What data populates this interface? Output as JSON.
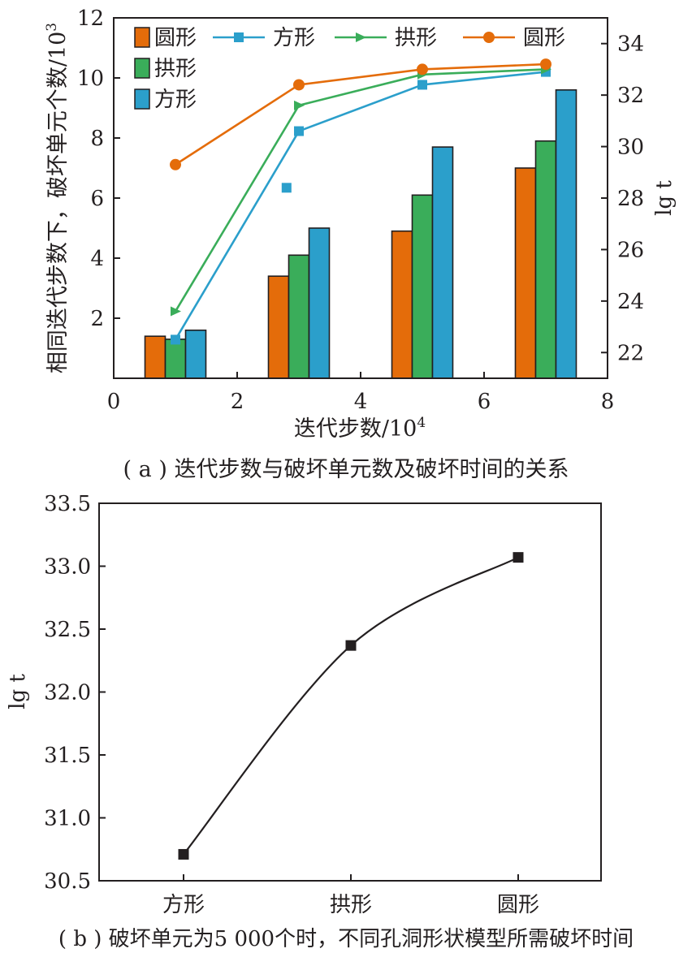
{
  "chart_data": [
    {
      "type": "bar+line",
      "panel_caption": "( a ) 迭代步数与破坏单元数及破坏时间的关系",
      "xlabel": "迭代步数/10",
      "xlabel_sup": "4",
      "ylabel_left": "相同迭代步数下，破坏单元个数/10",
      "ylabel_left_sup": "3",
      "ylabel_right": "lg t",
      "xlim": [
        0,
        8
      ],
      "ylim_left": [
        0,
        12
      ],
      "ylim_right": [
        21,
        35
      ],
      "x_ticks": [
        "0",
        "2",
        "4",
        "6",
        "8"
      ],
      "y_left_ticks": [
        "2",
        "4",
        "6",
        "8",
        "10",
        "12"
      ],
      "y_right_ticks": [
        "22",
        "24",
        "26",
        "28",
        "30",
        "32",
        "34"
      ],
      "bar_categories": [
        1,
        3,
        5,
        7
      ],
      "bar_series": [
        {
          "name": "圆形",
          "color": "#e46c0a",
          "values": [
            1.4,
            3.4,
            4.9,
            7.0
          ]
        },
        {
          "name": "拱形",
          "color": "#3aad5a",
          "values": [
            1.3,
            4.1,
            6.1,
            7.9
          ]
        },
        {
          "name": "方形",
          "color": "#2b9fcb",
          "values": [
            1.6,
            5.0,
            7.7,
            9.6
          ]
        }
      ],
      "line_series": [
        {
          "name": "方形",
          "color": "#2b9fcb",
          "marker": "square",
          "x": [
            1,
            3,
            5,
            7
          ],
          "y": [
            22.5,
            30.6,
            32.4,
            32.9
          ]
        },
        {
          "name": "拱形",
          "color": "#3aad5a",
          "marker": "triangle",
          "x": [
            1,
            3,
            5,
            7
          ],
          "y": [
            23.6,
            31.6,
            32.8,
            33.0
          ]
        },
        {
          "name": "圆形",
          "color": "#e46c0a",
          "marker": "circle",
          "x": [
            1,
            3,
            5,
            7
          ],
          "y": [
            29.3,
            32.4,
            33.0,
            33.2
          ]
        }
      ],
      "extra_points": [
        {
          "series": "方形",
          "x": 2.8,
          "y": 28.4
        }
      ],
      "legend": {
        "bars": [
          "圆形",
          "拱形",
          "方形"
        ],
        "lines": [
          "方形",
          "拱形",
          "圆形"
        ],
        "placement": "top-left"
      }
    },
    {
      "type": "line",
      "panel_caption": "( b ) 破坏单元为5 000个时，不同孔洞形状模型所需破坏时间",
      "ylabel": "lg t",
      "categories": [
        "方形",
        "拱形",
        "圆形"
      ],
      "values": [
        30.71,
        32.37,
        33.07
      ],
      "ylim": [
        30.5,
        33.5
      ],
      "y_ticks": [
        "30.5",
        "31.0",
        "31.5",
        "32.0",
        "32.5",
        "33.0",
        "33.5"
      ],
      "marker": "square",
      "line_color": "#231f20"
    }
  ]
}
